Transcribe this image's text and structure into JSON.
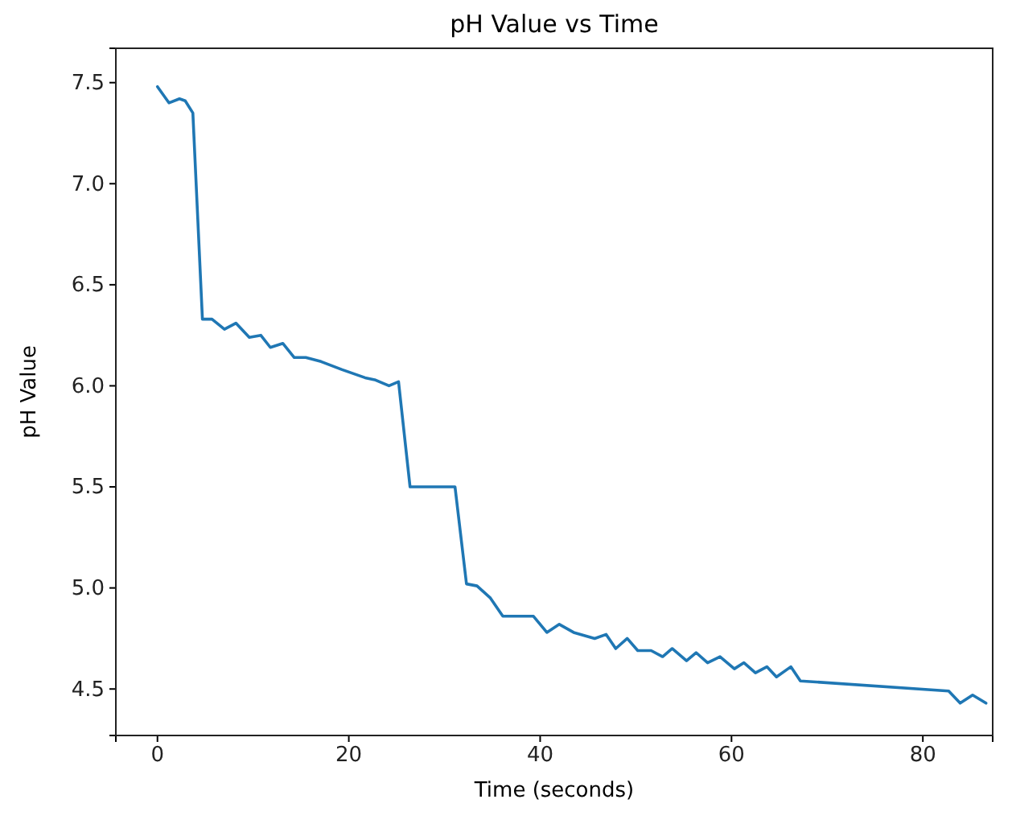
{
  "chart_data": {
    "type": "line",
    "title": "pH Value vs Time",
    "xlabel": "Time (seconds)",
    "ylabel": "pH Value",
    "xlim": [
      -4.35,
      87.3
    ],
    "xticks": [
      0,
      20,
      40,
      60,
      80
    ],
    "ylim": [
      4.27,
      7.67
    ],
    "yticks": [
      {
        "value": 4.5,
        "label": "4.5"
      },
      {
        "value": 5,
        "label": "5.0"
      },
      {
        "value": 5.5,
        "label": "5.5"
      },
      {
        "value": 6,
        "label": "6.0"
      },
      {
        "value": 6.5,
        "label": "6.5"
      },
      {
        "value": 7,
        "label": "7.0"
      },
      {
        "value": 7.5,
        "label": "7.5"
      }
    ],
    "grid": false,
    "series": [
      {
        "color": "#1f77b4",
        "x": [
          0,
          1.2,
          2.3,
          2.9,
          3.7,
          4.7,
          5.7,
          7.0,
          8.2,
          9.6,
          10.8,
          11.8,
          13.1,
          14.3,
          15.5,
          17.1,
          19.3,
          21.7,
          22.7,
          24.2,
          25.2,
          26.4,
          31.1,
          32.3,
          33.4,
          34.8,
          36.1,
          39.3,
          40.7,
          42,
          43.5,
          45.7,
          46.9,
          47.9,
          49.1,
          50.2,
          51.6,
          52.8,
          53.8,
          55.3,
          56.3,
          57.5,
          58.8,
          60.3,
          61.3,
          62.5,
          63.7,
          64.7,
          66.2,
          67.2,
          82.7,
          83.9,
          85.2,
          86.6
        ],
        "values": [
          7.48,
          7.4,
          7.42,
          7.41,
          7.35,
          6.33,
          6.33,
          6.28,
          6.31,
          6.24,
          6.25,
          6.19,
          6.21,
          6.14,
          6.14,
          6.12,
          6.08,
          6.04,
          6.03,
          6.0,
          6.02,
          5.5,
          5.5,
          5.02,
          5.01,
          4.95,
          4.86,
          4.86,
          4.78,
          4.82,
          4.78,
          4.75,
          4.77,
          4.7,
          4.75,
          4.69,
          4.69,
          4.66,
          4.7,
          4.64,
          4.68,
          4.63,
          4.66,
          4.6,
          4.63,
          4.58,
          4.61,
          4.56,
          4.61,
          4.54,
          4.49,
          4.43,
          4.47,
          4.43
        ]
      }
    ]
  }
}
